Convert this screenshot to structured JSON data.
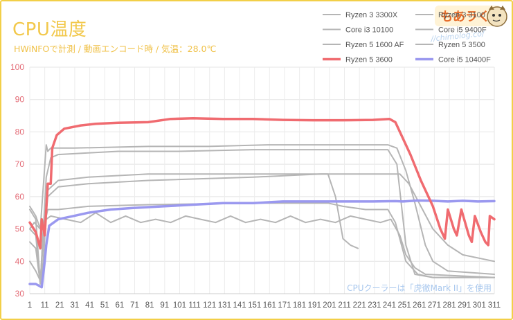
{
  "chart_data": {
    "type": "line",
    "title": "CPU温度",
    "subtitle": "HWiNFOで計測 / 動画エンコード時 / 気温：28.0℃",
    "note": "CPUクーラーは「虎徹Mark II」を使用",
    "ylim": [
      30,
      100
    ],
    "yticks": [
      30,
      40,
      50,
      60,
      70,
      80,
      90,
      100
    ],
    "xlim": [
      1,
      311
    ],
    "xticks": [
      1,
      11,
      21,
      31,
      41,
      51,
      61,
      71,
      81,
      91,
      101,
      111,
      121,
      131,
      141,
      151,
      161,
      171,
      181,
      191,
      201,
      211,
      221,
      231,
      241,
      251,
      261,
      271,
      281,
      291,
      301,
      311
    ],
    "grid": true,
    "legend_placement": "top-right",
    "series": [
      {
        "name": "Ryzen 3 3300X",
        "color": "#b5b5b5",
        "width": 2,
        "points": [
          [
            1,
            46
          ],
          [
            5,
            44
          ],
          [
            8,
            33
          ],
          [
            9,
            41
          ],
          [
            12,
            66
          ],
          [
            15,
            72
          ],
          [
            20,
            73
          ],
          [
            40,
            73.5
          ],
          [
            60,
            74
          ],
          [
            100,
            74
          ],
          [
            150,
            74.5
          ],
          [
            230,
            74.5
          ],
          [
            240,
            74.5
          ],
          [
            246,
            70
          ],
          [
            252,
            45
          ],
          [
            258,
            36
          ],
          [
            270,
            35
          ],
          [
            311,
            35
          ]
        ]
      },
      {
        "name": "Ryzen 3 3100",
        "color": "#b5b5b5",
        "width": 2,
        "points": [
          [
            1,
            56
          ],
          [
            5,
            53
          ],
          [
            8,
            33
          ],
          [
            10,
            50
          ],
          [
            13,
            56
          ],
          [
            20,
            56
          ],
          [
            40,
            57
          ],
          [
            80,
            57.5
          ],
          [
            150,
            58
          ],
          [
            200,
            58
          ],
          [
            210,
            57
          ],
          [
            225,
            56
          ],
          [
            240,
            56
          ],
          [
            245,
            52
          ],
          [
            252,
            40
          ],
          [
            260,
            36
          ],
          [
            270,
            35
          ],
          [
            311,
            35
          ]
        ]
      },
      {
        "name": "Core i3 10100",
        "color": "#b5b5b5",
        "width": 2,
        "points": [
          [
            1,
            40
          ],
          [
            5,
            37
          ],
          [
            8,
            34
          ],
          [
            10,
            46
          ],
          [
            13,
            60
          ],
          [
            20,
            63
          ],
          [
            40,
            64
          ],
          [
            80,
            65
          ],
          [
            150,
            66
          ],
          [
            195,
            67
          ],
          [
            200,
            67
          ],
          [
            205,
            60
          ],
          [
            210,
            47
          ],
          [
            215,
            45
          ],
          [
            220,
            44
          ]
        ]
      },
      {
        "name": "Core i5 9400F",
        "color": "#b5b5b5",
        "width": 2,
        "points": [
          [
            1,
            57
          ],
          [
            5,
            54
          ],
          [
            8,
            50
          ],
          [
            12,
            76
          ],
          [
            13,
            74
          ],
          [
            15,
            75
          ],
          [
            30,
            75
          ],
          [
            80,
            75.5
          ],
          [
            120,
            75.5
          ],
          [
            160,
            76
          ],
          [
            240,
            76
          ],
          [
            246,
            75
          ],
          [
            252,
            68
          ],
          [
            258,
            58
          ],
          [
            265,
            45
          ],
          [
            270,
            40
          ],
          [
            280,
            37
          ],
          [
            311,
            36
          ]
        ]
      },
      {
        "name": "Ryzen 5 1600 AF",
        "color": "#b5b5b5",
        "width": 2,
        "points": [
          [
            1,
            50
          ],
          [
            5,
            48
          ],
          [
            8,
            33
          ],
          [
            10,
            40
          ],
          [
            13,
            62
          ],
          [
            20,
            65
          ],
          [
            40,
            66
          ],
          [
            80,
            67
          ],
          [
            150,
            67
          ],
          [
            200,
            67
          ],
          [
            240,
            67
          ],
          [
            248,
            67
          ],
          [
            254,
            64
          ],
          [
            262,
            57
          ],
          [
            270,
            50
          ],
          [
            280,
            45
          ],
          [
            290,
            42
          ],
          [
            311,
            40
          ]
        ]
      },
      {
        "name": "Ryzen 5 3500",
        "color": "#b5b5b5",
        "width": 2,
        "points": [
          [
            1,
            50
          ],
          [
            4,
            52
          ],
          [
            8,
            50
          ],
          [
            12,
            53
          ],
          [
            15,
            54
          ],
          [
            25,
            53
          ],
          [
            35,
            52
          ],
          [
            45,
            55
          ],
          [
            55,
            52
          ],
          [
            65,
            54
          ],
          [
            75,
            52
          ],
          [
            85,
            53
          ],
          [
            95,
            52
          ],
          [
            105,
            54
          ],
          [
            115,
            53
          ],
          [
            125,
            52
          ],
          [
            135,
            54
          ],
          [
            145,
            52
          ],
          [
            155,
            53
          ],
          [
            165,
            52
          ],
          [
            175,
            54
          ],
          [
            185,
            52
          ],
          [
            195,
            53
          ],
          [
            205,
            52
          ],
          [
            215,
            54
          ],
          [
            225,
            53
          ],
          [
            235,
            52
          ],
          [
            242,
            53
          ],
          [
            248,
            48
          ],
          [
            252,
            42
          ],
          [
            258,
            38
          ],
          [
            265,
            36
          ],
          [
            311,
            35
          ]
        ]
      },
      {
        "name": "Ryzen 5 3600",
        "color": "#f06b70",
        "width": 3.5,
        "points": [
          [
            1,
            52
          ],
          [
            5,
            49
          ],
          [
            8,
            44
          ],
          [
            9,
            53
          ],
          [
            11,
            48
          ],
          [
            13,
            64
          ],
          [
            15,
            64
          ],
          [
            16,
            75
          ],
          [
            19,
            79
          ],
          [
            24,
            81
          ],
          [
            35,
            82
          ],
          [
            45,
            82.5
          ],
          [
            60,
            82.8
          ],
          [
            80,
            83
          ],
          [
            95,
            84
          ],
          [
            110,
            84.2
          ],
          [
            130,
            84
          ],
          [
            150,
            84
          ],
          [
            170,
            83.7
          ],
          [
            190,
            83.6
          ],
          [
            210,
            83.6
          ],
          [
            230,
            83.7
          ],
          [
            241,
            84
          ],
          [
            245,
            83
          ],
          [
            255,
            73
          ],
          [
            262,
            65
          ],
          [
            270,
            57
          ],
          [
            275,
            50
          ],
          [
            278,
            47
          ],
          [
            280,
            56
          ],
          [
            284,
            50
          ],
          [
            286,
            48
          ],
          [
            289,
            56
          ],
          [
            294,
            48
          ],
          [
            296,
            46
          ],
          [
            298,
            54
          ],
          [
            302,
            49
          ],
          [
            305,
            46
          ],
          [
            307,
            45
          ],
          [
            308,
            54
          ],
          [
            311,
            53
          ]
        ]
      },
      {
        "name": "Core i5 10400F",
        "color": "#9a98ef",
        "width": 3.5,
        "points": [
          [
            1,
            33
          ],
          [
            5,
            33
          ],
          [
            9,
            32
          ],
          [
            11,
            40
          ],
          [
            12,
            45
          ],
          [
            14,
            51
          ],
          [
            20,
            53
          ],
          [
            30,
            54
          ],
          [
            40,
            55
          ],
          [
            55,
            56
          ],
          [
            70,
            56.5
          ],
          [
            90,
            57
          ],
          [
            110,
            57.5
          ],
          [
            130,
            58
          ],
          [
            150,
            58
          ],
          [
            170,
            58.5
          ],
          [
            190,
            58.5
          ],
          [
            210,
            58.5
          ],
          [
            230,
            58.5
          ],
          [
            245,
            58.6
          ],
          [
            250,
            58.5
          ],
          [
            260,
            58.8
          ],
          [
            270,
            58.7
          ],
          [
            280,
            58.5
          ],
          [
            290,
            58.7
          ],
          [
            300,
            58.5
          ],
          [
            311,
            58.6
          ]
        ]
      }
    ]
  }
}
